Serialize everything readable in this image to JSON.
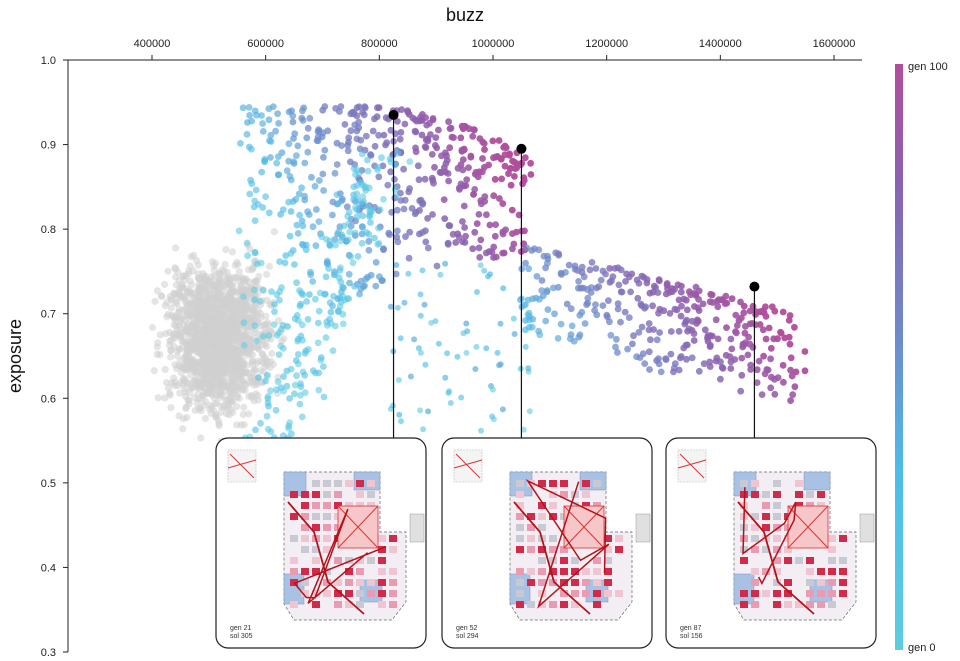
{
  "chart_data": {
    "type": "scatter",
    "xlabel": "buzz",
    "ylabel": "exposure",
    "x_ticks": [
      "400000",
      "600000",
      "800000",
      "1000000",
      "1200000",
      "1400000",
      "1600000"
    ],
    "y_ticks": [
      "1.0",
      "0.9",
      "0.8",
      "0.7",
      "0.6",
      "0.5",
      "0.4",
      "0.3"
    ],
    "xlim": [
      250000,
      1650000
    ],
    "ylim": [
      0.3,
      1.0
    ],
    "colorbar": {
      "top_label": "gen 100",
      "bottom_label": "gen 0",
      "colors": [
        "#5ecde0",
        "#4dbde9",
        "#6f88c8",
        "#8a62b0",
        "#b24d9c"
      ]
    },
    "background_color": "#cfcfcf",
    "highlighted": [
      {
        "x": 825000,
        "y": 0.935,
        "gen": "gen 21",
        "sol": "sol  305"
      },
      {
        "x": 1050000,
        "y": 0.895,
        "gen": "gen 52",
        "sol": "sol  294"
      },
      {
        "x": 1460000,
        "y": 0.732,
        "gen": "gen 87",
        "sol": "sol  156"
      }
    ]
  }
}
